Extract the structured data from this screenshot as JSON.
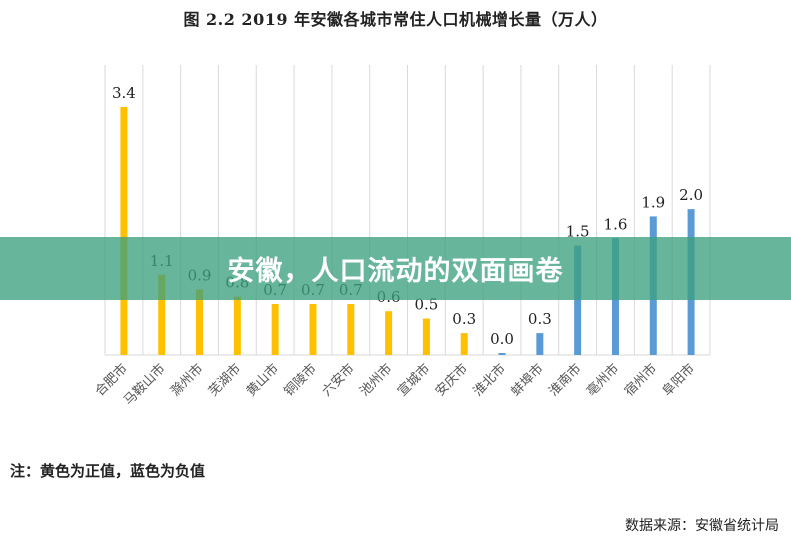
{
  "colors": {
    "positive": "#FFC000",
    "negative": "#5B9BD5",
    "grid": "#D9D9D9",
    "banner": "#3CA07D"
  },
  "chart_data": {
    "type": "bar",
    "title": "图 2.2   2019 年安徽各城市常住人口机械增长量（万人）",
    "categories": [
      "合肥市",
      "马鞍山市",
      "滁州市",
      "芜湖市",
      "黄山市",
      "铜陵市",
      "六安市",
      "池州市",
      "宣城市",
      "安庆市",
      "淮北市",
      "蚌埠市",
      "淮南市",
      "亳州市",
      "宿州市",
      "阜阳市"
    ],
    "values": [
      3.4,
      1.1,
      0.9,
      0.8,
      0.7,
      0.7,
      0.7,
      0.6,
      0.5,
      0.3,
      0.0,
      0.3,
      1.5,
      1.6,
      1.9,
      2.0
    ],
    "value_labels": [
      "3.4",
      "1.1",
      "0.9",
      "0.8",
      "0.7",
      "0.7",
      "0.7",
      "0.6",
      "0.5",
      "0.3",
      "0.0",
      "0.3",
      "1.5",
      "1.6",
      "1.9",
      "2.0"
    ],
    "sign": [
      "positive",
      "positive",
      "positive",
      "positive",
      "positive",
      "positive",
      "positive",
      "positive",
      "positive",
      "positive",
      "negative",
      "negative",
      "negative",
      "negative",
      "negative",
      "negative"
    ],
    "ylim": [
      0,
      3.4
    ],
    "grid": "vertical",
    "xlabel": "",
    "ylabel": ""
  },
  "overlay": {
    "banner_text": "安徽，人口流动的双面画卷"
  },
  "note": "注：黄色为正值，蓝色为负值",
  "source": "数据来源：安徽省统计局"
}
